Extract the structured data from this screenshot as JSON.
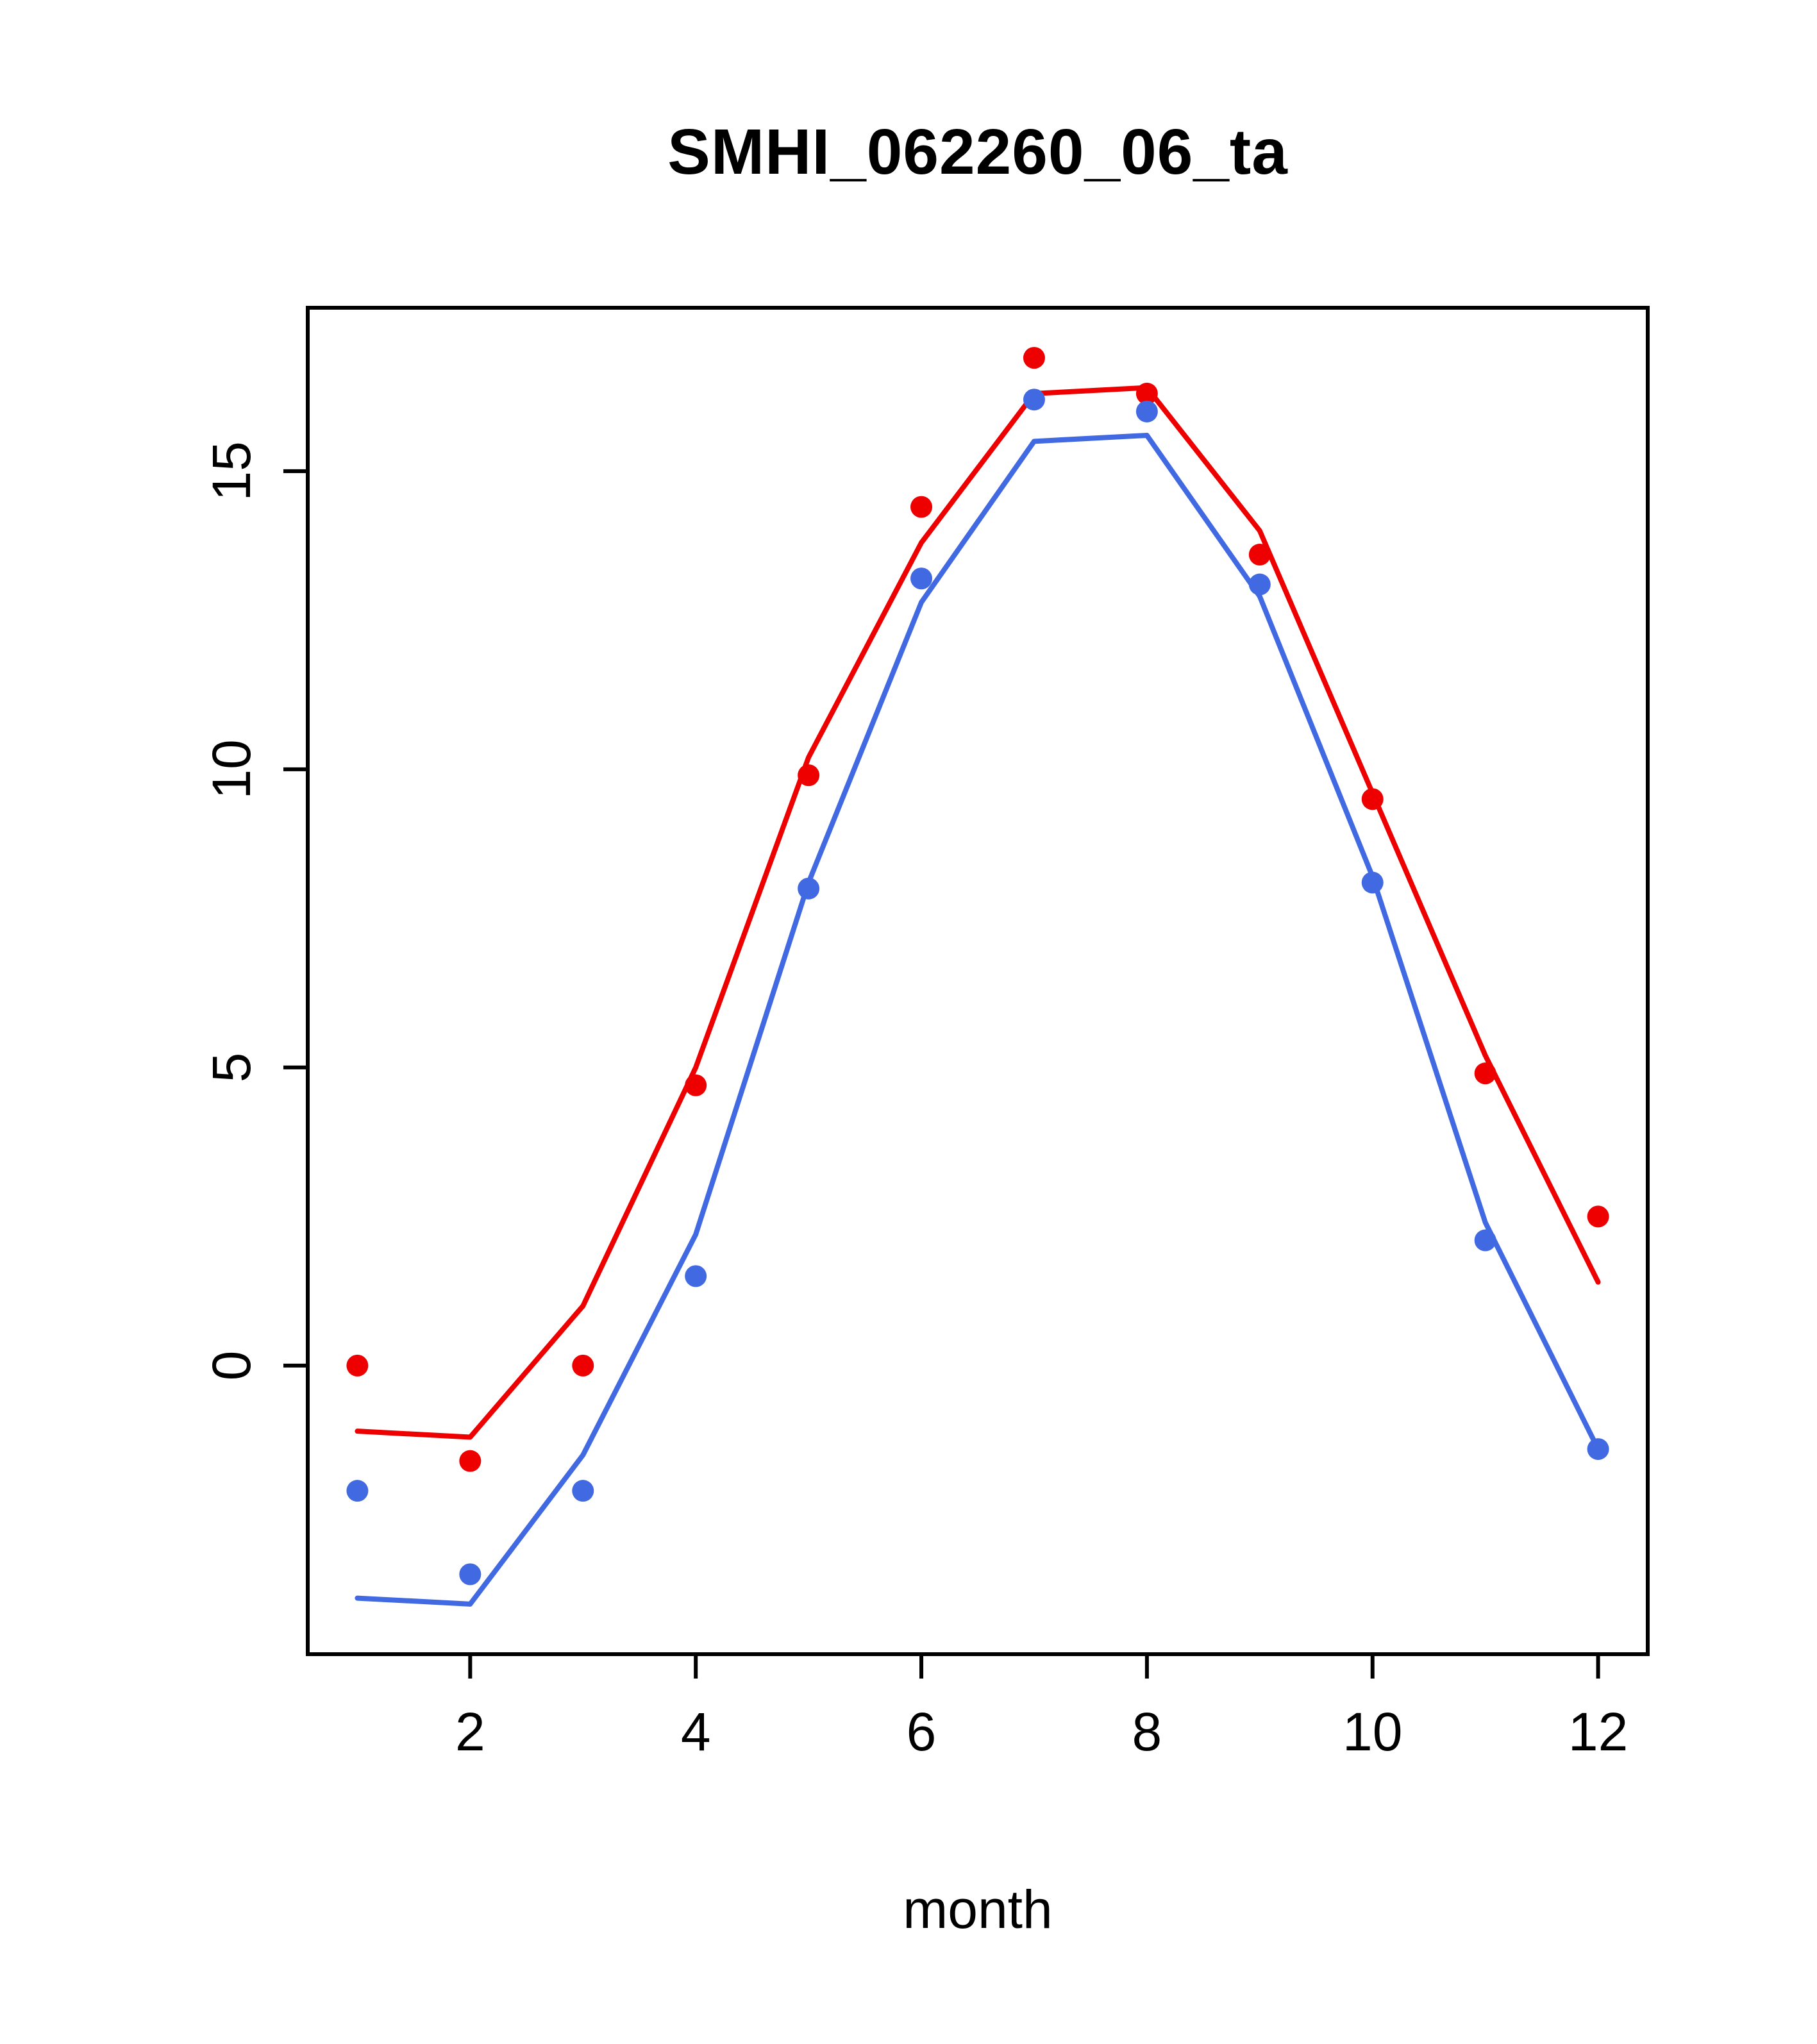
{
  "chart_data": {
    "type": "line",
    "title": "SMHI_062260_06_ta",
    "xlabel": "month",
    "ylabel": "",
    "x": [
      1,
      2,
      3,
      4,
      5,
      6,
      7,
      8,
      9,
      10,
      11,
      12
    ],
    "xticks": [
      2,
      4,
      6,
      8,
      10,
      12
    ],
    "yticks": [
      0,
      5,
      10,
      15
    ],
    "xlim": [
      0.56,
      12.44
    ],
    "ylim": [
      -4.84,
      17.74
    ],
    "grid": false,
    "legend": "none",
    "colors": {
      "red_series": "#ee0000",
      "blue_series": "#4169e1",
      "axis": "#000000"
    },
    "series": [
      {
        "name": "red-line",
        "style": "line",
        "color": "#ee0000",
        "values": [
          -1.1,
          -1.2,
          1.0,
          5.0,
          10.2,
          13.8,
          16.3,
          16.4,
          14.0,
          9.6,
          5.2,
          1.4
        ]
      },
      {
        "name": "blue-line",
        "style": "line",
        "color": "#4169e1",
        "values": [
          -3.9,
          -4.0,
          -1.5,
          2.2,
          8.1,
          12.8,
          15.5,
          15.6,
          12.9,
          8.2,
          2.4,
          -1.4
        ]
      },
      {
        "name": "red-points",
        "style": "points",
        "color": "#ee0000",
        "values": [
          0.0,
          -1.6,
          0.0,
          4.7,
          9.9,
          14.4,
          16.9,
          16.3,
          13.6,
          9.5,
          4.9,
          2.5
        ]
      },
      {
        "name": "blue-points",
        "style": "points",
        "color": "#4169e1",
        "values": [
          -2.1,
          -3.5,
          -2.1,
          1.5,
          8.0,
          13.2,
          16.2,
          16.0,
          13.1,
          8.1,
          2.1,
          -1.4
        ]
      }
    ]
  }
}
